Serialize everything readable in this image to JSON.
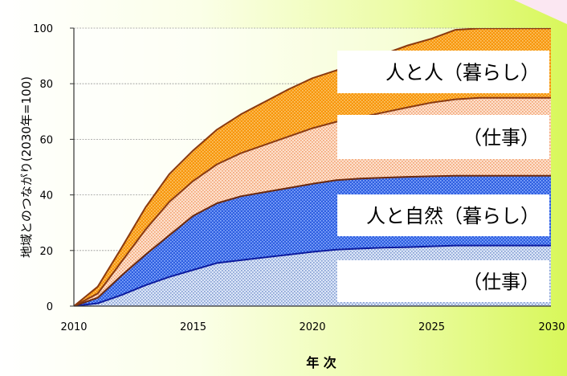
{
  "chart_data": {
    "type": "area",
    "stacked": true,
    "xlabel": "年 次",
    "ylabel": "地域とのつながり(2030年=100)",
    "xlim": [
      2010,
      2030
    ],
    "ylim": [
      0,
      100
    ],
    "x_ticks": [
      2010,
      2015,
      2020,
      2025,
      2030
    ],
    "y_ticks": [
      0,
      20,
      40,
      60,
      80,
      100
    ],
    "grid": true,
    "x": [
      2010,
      2011,
      2012,
      2013,
      2014,
      2015,
      2016,
      2017,
      2018,
      2019,
      2020,
      2021,
      2022,
      2023,
      2024,
      2025,
      2026,
      2027,
      2028,
      2029,
      2030
    ],
    "series": [
      {
        "name": "(仕事)",
        "group": "人と自然",
        "label": "（仕事）",
        "color": "#dbe5f7",
        "dot_color": "#7f9ad0",
        "line_color": "#0b1a9e",
        "values": [
          0,
          1,
          4,
          7.5,
          10.5,
          13,
          15.5,
          16.5,
          17.5,
          18.5,
          19.5,
          20.3,
          20.7,
          21,
          21.2,
          21.5,
          21.8,
          21.8,
          21.8,
          21.8,
          21.8
        ]
      },
      {
        "name": "人と自然(暮らし)",
        "group": "人と自然",
        "label": "人と自然（暮らし）",
        "color": "#2f5fe0",
        "dot_color": "#8fb0ff",
        "line_color": "#6b2a0f",
        "values": [
          0,
          2,
          7,
          11,
          15,
          19.5,
          21.5,
          23,
          23.5,
          24,
          24.5,
          25,
          25.2,
          25.2,
          25.3,
          25.2,
          25.1,
          25.1,
          25.1,
          25.1,
          25.1
        ]
      },
      {
        "name": "(仕事)",
        "group": "人と人",
        "label": "（仕事）",
        "color": "#fde0cc",
        "dot_color": "#f2a070",
        "line_color": "#8a3a10",
        "values": [
          0,
          1.5,
          5,
          9,
          12,
          12.5,
          14,
          15.5,
          17,
          18.5,
          20,
          21,
          22,
          23.5,
          25,
          26.5,
          27.5,
          28,
          28,
          28,
          28
        ]
      },
      {
        "name": "人と人(暮らし)",
        "group": "人と人",
        "label": "人と人（暮らし）",
        "color": "#f7960c",
        "dot_color": "#fcc870",
        "line_color": "#8a3a10",
        "values": [
          0,
          2.5,
          5,
          8,
          10,
          11,
          12.5,
          14,
          15.5,
          17,
          18,
          18.5,
          19.8,
          21,
          22.3,
          23,
          25,
          25,
          25,
          25,
          25
        ]
      }
    ]
  }
}
